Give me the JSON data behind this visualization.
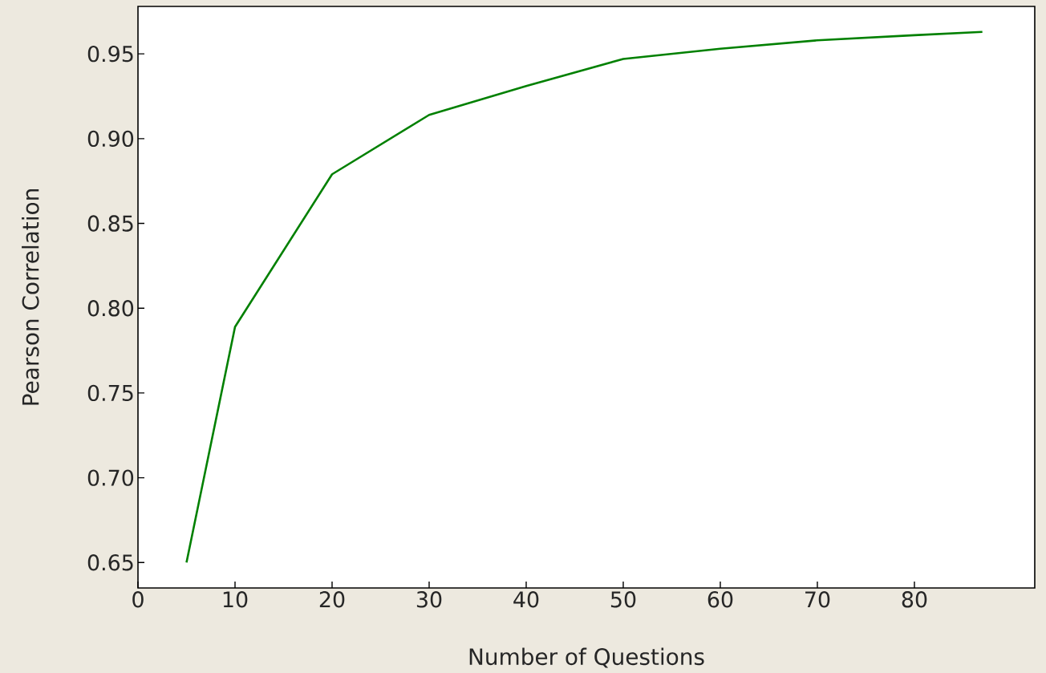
{
  "chart_data": {
    "type": "line",
    "xlabel": "Number of Questions",
    "ylabel": "Pearson Correlation",
    "x": [
      5,
      10,
      20,
      30,
      40,
      50,
      60,
      70,
      80,
      87
    ],
    "series": [
      {
        "color": "#008000",
        "values": [
          0.65,
          0.789,
          0.879,
          0.914,
          0.931,
          0.947,
          0.953,
          0.958,
          0.961,
          0.963
        ]
      }
    ],
    "xlim": [
      0,
      92.4
    ],
    "ylim": [
      0.635,
      0.978
    ],
    "xticks": [
      0,
      10,
      20,
      30,
      40,
      50,
      60,
      70,
      80
    ],
    "yticks": [
      {
        "value": 0.65,
        "label": "0.65"
      },
      {
        "value": 0.7,
        "label": "0.70"
      },
      {
        "value": 0.75,
        "label": "0.75"
      },
      {
        "value": 0.8,
        "label": "0.80"
      },
      {
        "value": 0.85,
        "label": "0.85"
      },
      {
        "value": 0.9,
        "label": "0.90"
      },
      {
        "value": 0.95,
        "label": "0.95"
      }
    ],
    "grid": false,
    "marker": "none",
    "line_style": "solid"
  }
}
